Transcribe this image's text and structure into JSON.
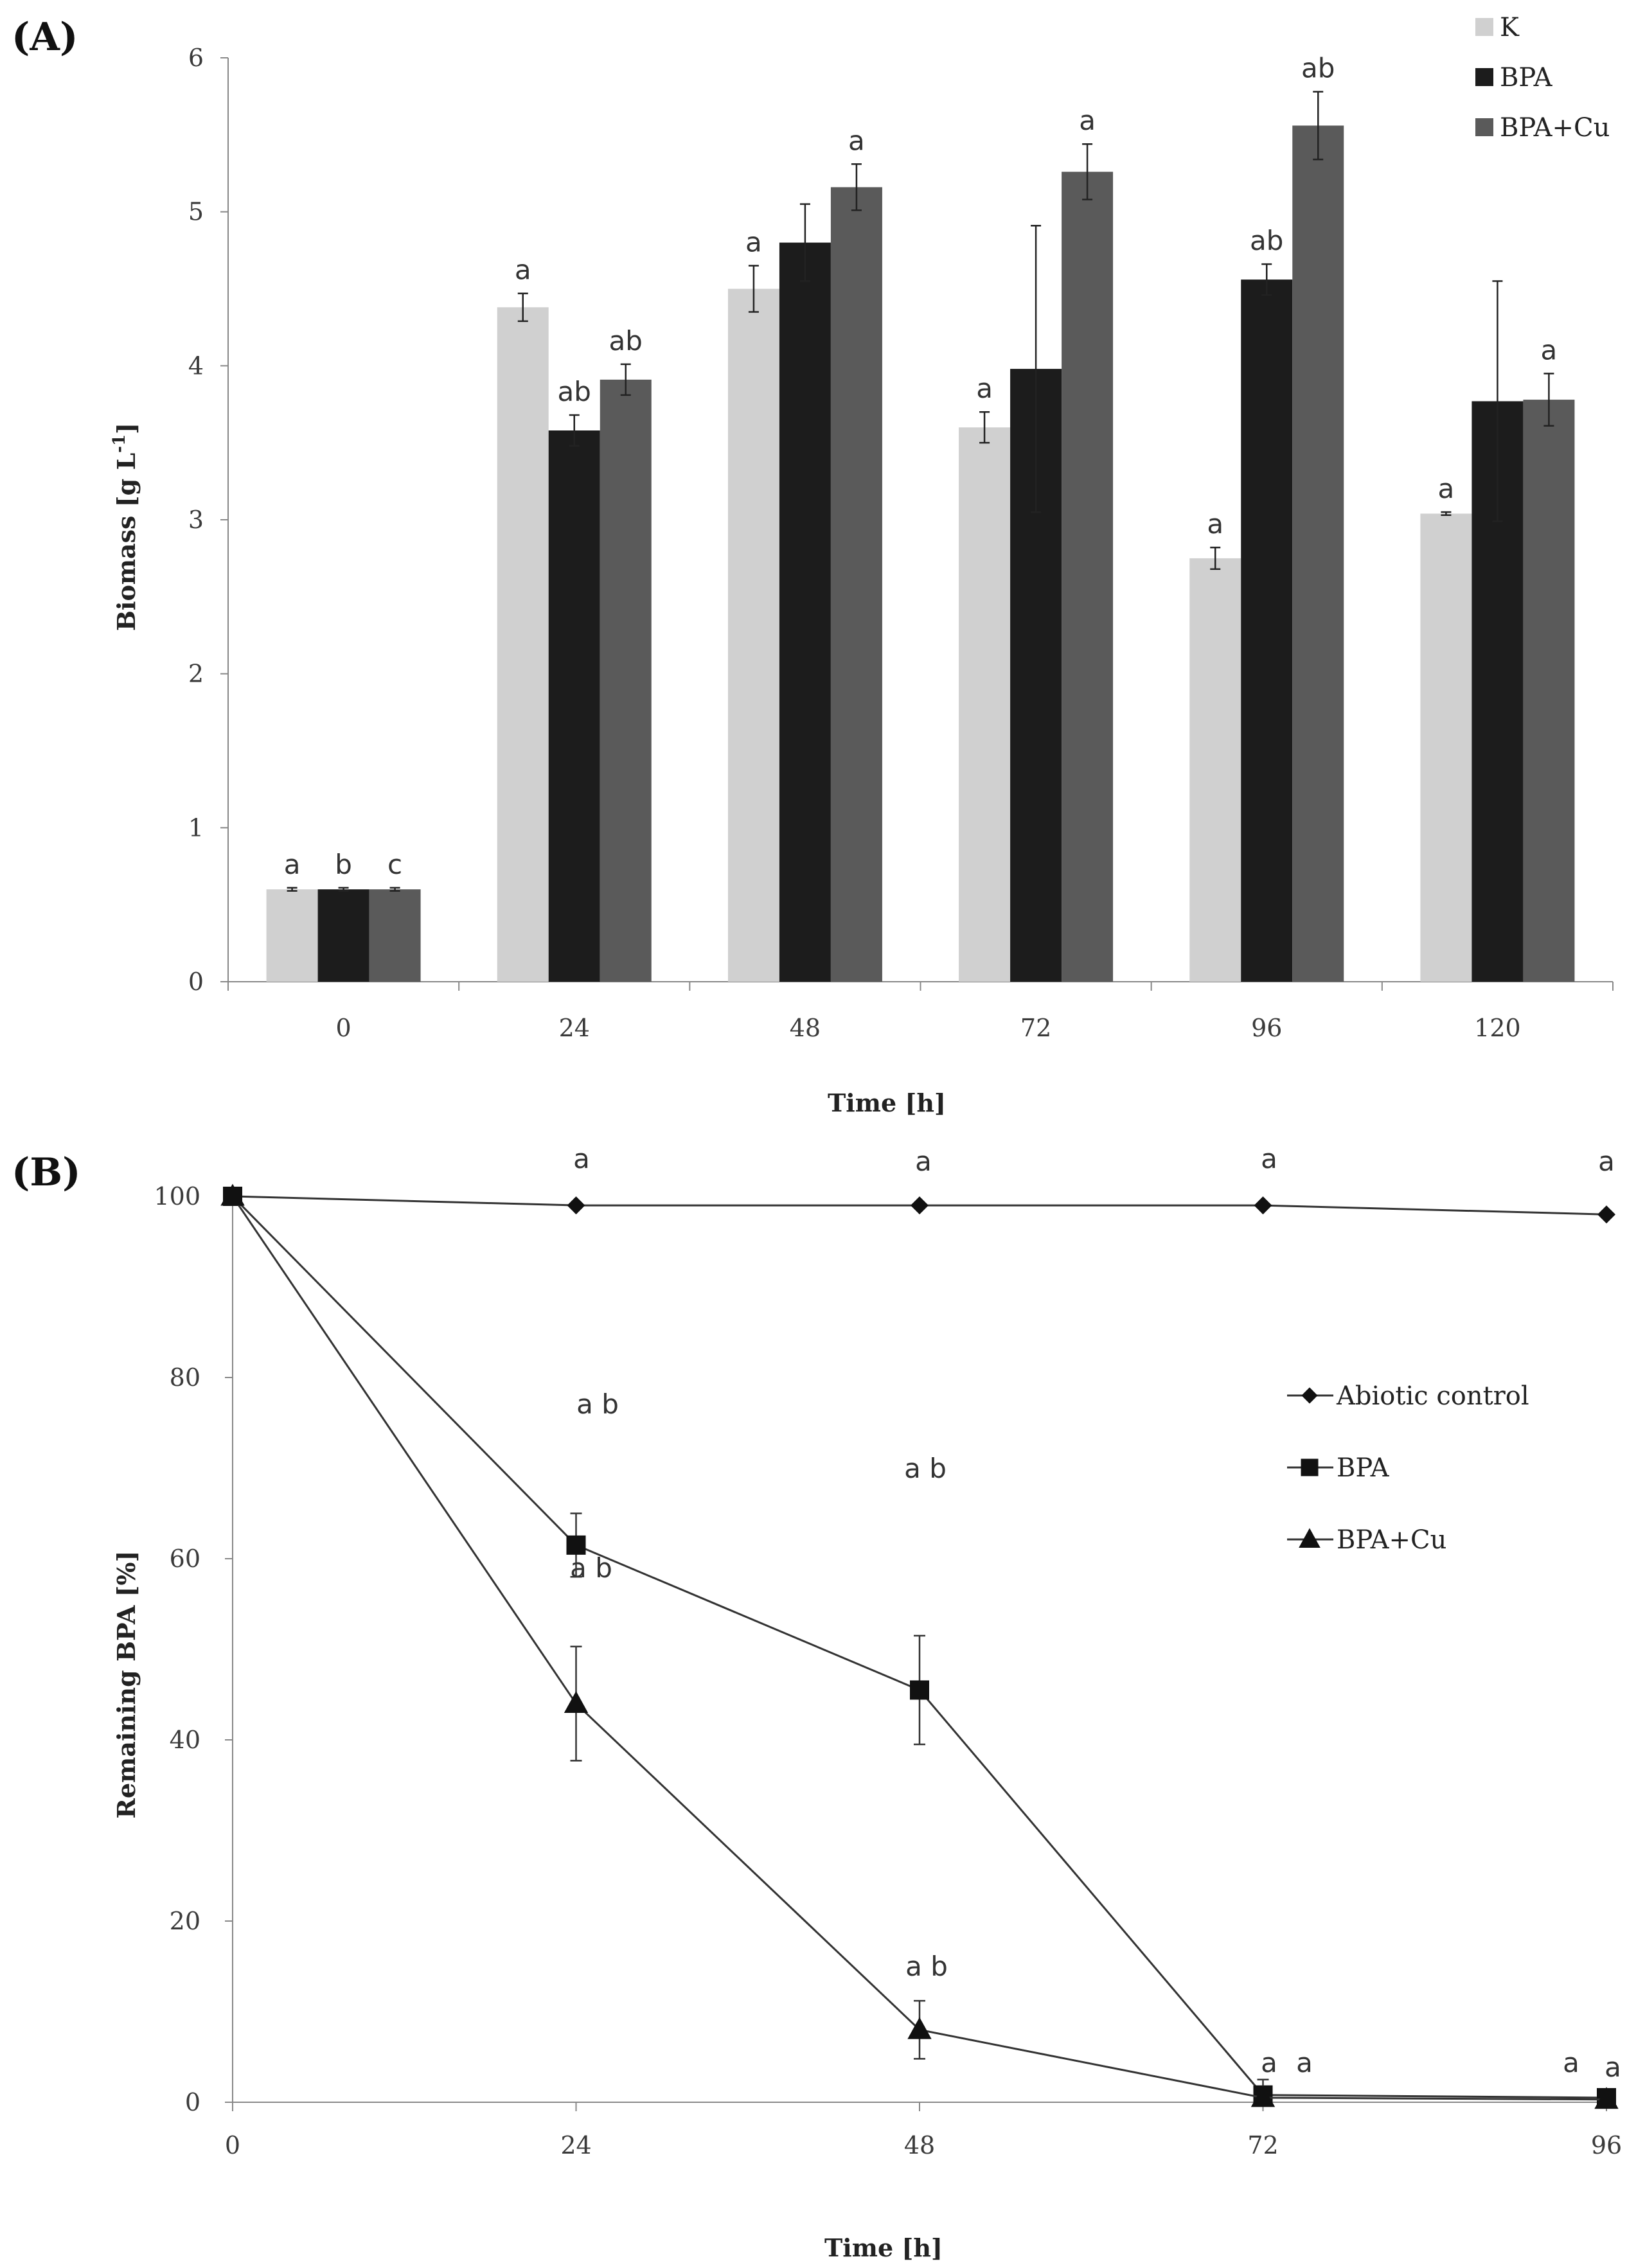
{
  "chart_data": [
    {
      "type": "bar",
      "panel_label": "(A)",
      "xlabel": "Time [h]",
      "ylabel": "Biomass [g L",
      "ylabel_sup": "-1",
      "ylabel_close": "]",
      "ylim": [
        0,
        6
      ],
      "yticks": [
        "0",
        "1",
        "2",
        "3",
        "4",
        "5",
        "6"
      ],
      "categories": [
        "0",
        "24",
        "48",
        "72",
        "96",
        "120"
      ],
      "legend_position": "top-right",
      "grid": false,
      "series": [
        {
          "name": "K",
          "color": "#d0d0d0",
          "values": [
            0.6,
            4.38,
            4.5,
            3.6,
            2.75,
            3.04
          ],
          "errors": [
            0.01,
            0.09,
            0.15,
            0.1,
            0.07,
            0.01
          ],
          "labels": [
            "a",
            "a",
            "a",
            "a",
            "a",
            "a"
          ]
        },
        {
          "name": "BPA",
          "color": "#1c1c1c",
          "values": [
            0.6,
            3.58,
            4.8,
            3.98,
            4.56,
            3.77
          ],
          "errors": [
            0.01,
            0.1,
            0.25,
            0.93,
            0.1,
            0.78
          ],
          "labels": [
            "b",
            "ab",
            "",
            "",
            "ab",
            ""
          ]
        },
        {
          "name": "BPA+Cu",
          "color": "#5a5a5a",
          "values": [
            0.6,
            3.91,
            5.16,
            5.26,
            5.56,
            3.78
          ],
          "errors": [
            0.01,
            0.1,
            0.15,
            0.18,
            0.22,
            0.17
          ],
          "labels": [
            "c",
            "ab",
            "a",
            "a",
            "ab",
            "a"
          ]
        }
      ]
    },
    {
      "type": "line",
      "panel_label": "(B)",
      "xlabel": "Time [h]",
      "ylabel": "Remaining BPA [%]",
      "xlim": [
        0,
        96
      ],
      "ylim": [
        0,
        100
      ],
      "xticks": [
        "0",
        "24",
        "48",
        "72",
        "96"
      ],
      "yticks": [
        "0",
        "20",
        "40",
        "60",
        "80",
        "100"
      ],
      "x": [
        0,
        24,
        48,
        72,
        96
      ],
      "legend_position": "right",
      "grid": false,
      "series": [
        {
          "name": "Abiotic control",
          "marker": "diamond",
          "values": [
            100,
            99,
            99,
            99,
            98
          ],
          "errors": [
            0,
            0,
            0,
            0,
            0
          ],
          "labels": [
            "",
            "a",
            "a",
            "a",
            "a"
          ]
        },
        {
          "name": "BPA",
          "marker": "square",
          "values": [
            100,
            61.5,
            45.5,
            0.8,
            0.5
          ],
          "errors": [
            0,
            3.5,
            6,
            0,
            0
          ],
          "labels": [
            "",
            "a  b",
            "a b",
            "a",
            "a"
          ]
        },
        {
          "name": "BPA+Cu",
          "marker": "triangle",
          "values": [
            100,
            44,
            8,
            0.5,
            0.3
          ],
          "errors": [
            0,
            6.3,
            3.2,
            2,
            0
          ],
          "labels": [
            "",
            "a b",
            "a b",
            "a",
            "a"
          ]
        }
      ]
    }
  ]
}
